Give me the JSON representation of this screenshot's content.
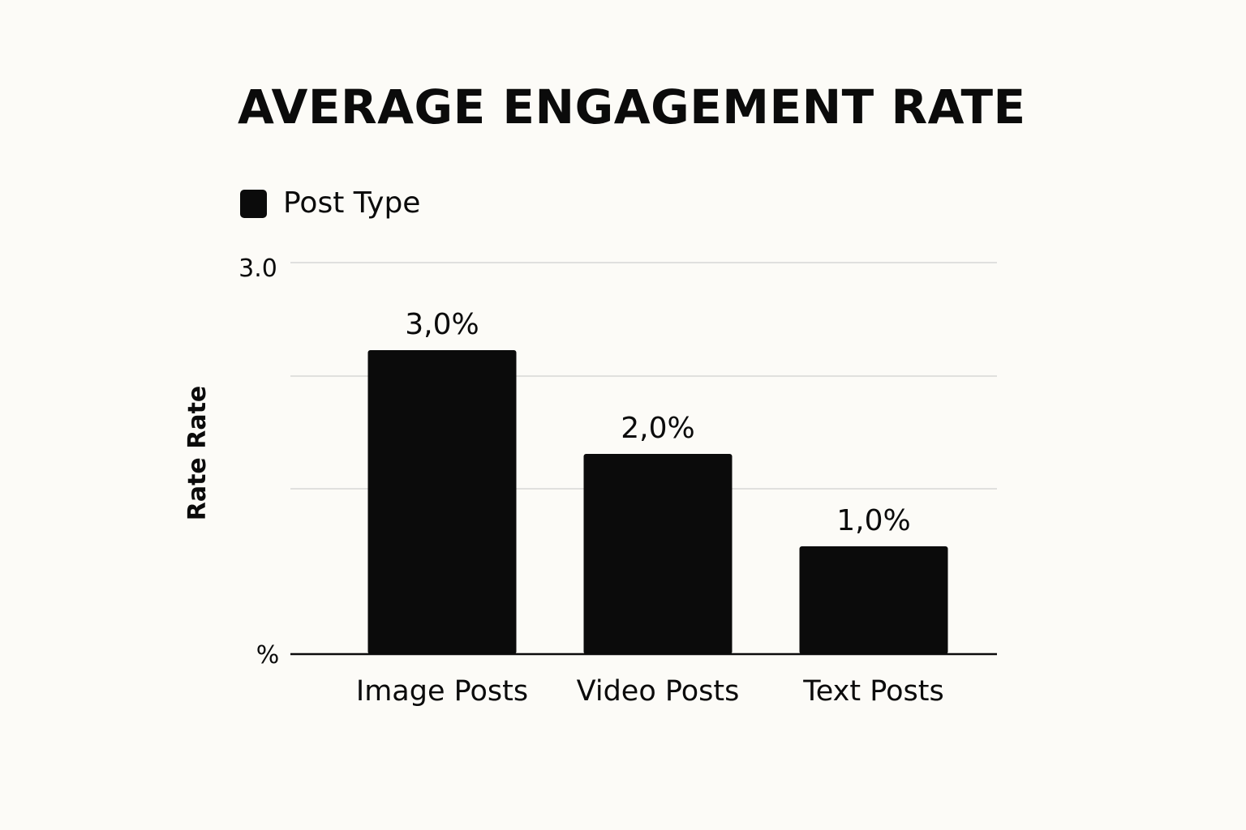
{
  "chart_data": {
    "type": "bar",
    "title": "AVERAGE ENGAGEMENT RATE",
    "legend": {
      "label": "Post Type",
      "color": "#0b0b0b",
      "position": "top-left"
    },
    "ylabel": "Rate Rate",
    "y_tick_labels": {
      "top": "3.0",
      "bottom": "%"
    },
    "categories": [
      "Image Posts",
      "Video Posts",
      "Text Posts"
    ],
    "series": [
      {
        "name": "Post Type",
        "values": [
          3.0,
          2.0,
          1.0
        ],
        "data_labels": [
          "3,0%",
          "2,0%",
          "1,0%"
        ]
      }
    ],
    "gridlines": true,
    "colors": {
      "bar": "#0b0b0b",
      "gridline": "#cfcfcf",
      "axis": "#0b0b0b",
      "background": "#fcfbf7"
    }
  }
}
